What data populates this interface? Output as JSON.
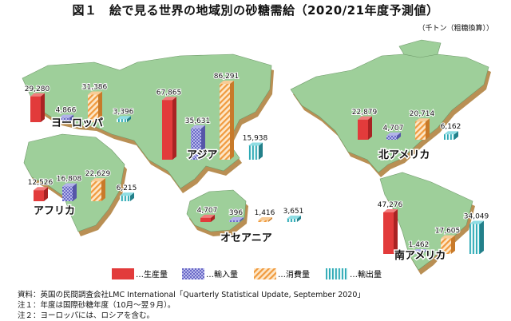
{
  "title": "図１　絵で見る世界の地域別の砂糖需給（2020/21年度予測値）",
  "unit": "（千トン（粗糖換算））",
  "colors": {
    "land": "#9ecf9a",
    "land_side": "#b98f54",
    "生産量": "#e23b3b",
    "輸入量": "#7f7fd2",
    "消費量": "#f0a54e",
    "輸出量": "#3bb8c4"
  },
  "legend": [
    {
      "key": "生産量",
      "label": "生産量"
    },
    {
      "key": "輸入量",
      "label": "輸入量"
    },
    {
      "key": "消費量",
      "label": "消費量"
    },
    {
      "key": "輸出量",
      "label": "輸出量"
    }
  ],
  "chart_data": {
    "type": "bar",
    "title": "図１　絵で見る世界の地域別の砂糖需給（2020/21年度予測値）",
    "unit": "千トン（粗糖換算）",
    "series_names": [
      "生産量",
      "輸入量",
      "消費量",
      "輸出量"
    ],
    "regions": [
      {
        "name": "ヨーロッパ",
        "values": [
          29280,
          4866,
          31386,
          3396
        ]
      },
      {
        "name": "アジア",
        "values": [
          67865,
          35631,
          86291,
          15938
        ]
      },
      {
        "name": "北アメリカ",
        "values": [
          22879,
          4707,
          20714,
          6162
        ]
      },
      {
        "name": "アフリカ",
        "values": [
          12526,
          16808,
          22629,
          6215
        ]
      },
      {
        "name": "オセアニア",
        "values": [
          4707,
          396,
          1416,
          3651
        ]
      },
      {
        "name": "南アメリカ",
        "values": [
          47276,
          1462,
          17605,
          34049
        ]
      }
    ]
  },
  "notes": [
    "資料：英国の民間調査会社LMC International「Quarterly Statistical Update, September 2020」",
    "注１：年度は国際砂糖年度（10月～翌９月）。",
    "注２：ヨーロッパには、ロシアを含む。"
  ]
}
